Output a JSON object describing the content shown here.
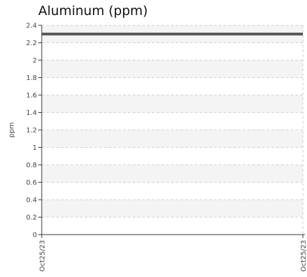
{
  "chart_data": {
    "type": "line",
    "title": "Aluminum (ppm)",
    "xlabel": "",
    "ylabel": "ppm",
    "ylim": [
      0,
      2.4
    ],
    "yticks": [
      "0",
      "0.2",
      "0.4",
      "0.6",
      "0.8",
      "1",
      "1.2",
      "1.4",
      "1.6",
      "1.8",
      "2",
      "2.2",
      "2.4"
    ],
    "x": [
      "Oct25/23",
      "Oct25/23"
    ],
    "series": [
      {
        "values": [
          2.3,
          2.3
        ]
      }
    ],
    "grid": true,
    "legend": "none",
    "colors": {
      "line": "#555555",
      "band": "#f4f4f4",
      "grid": "#d0d0d0",
      "axis": "#333333"
    }
  }
}
